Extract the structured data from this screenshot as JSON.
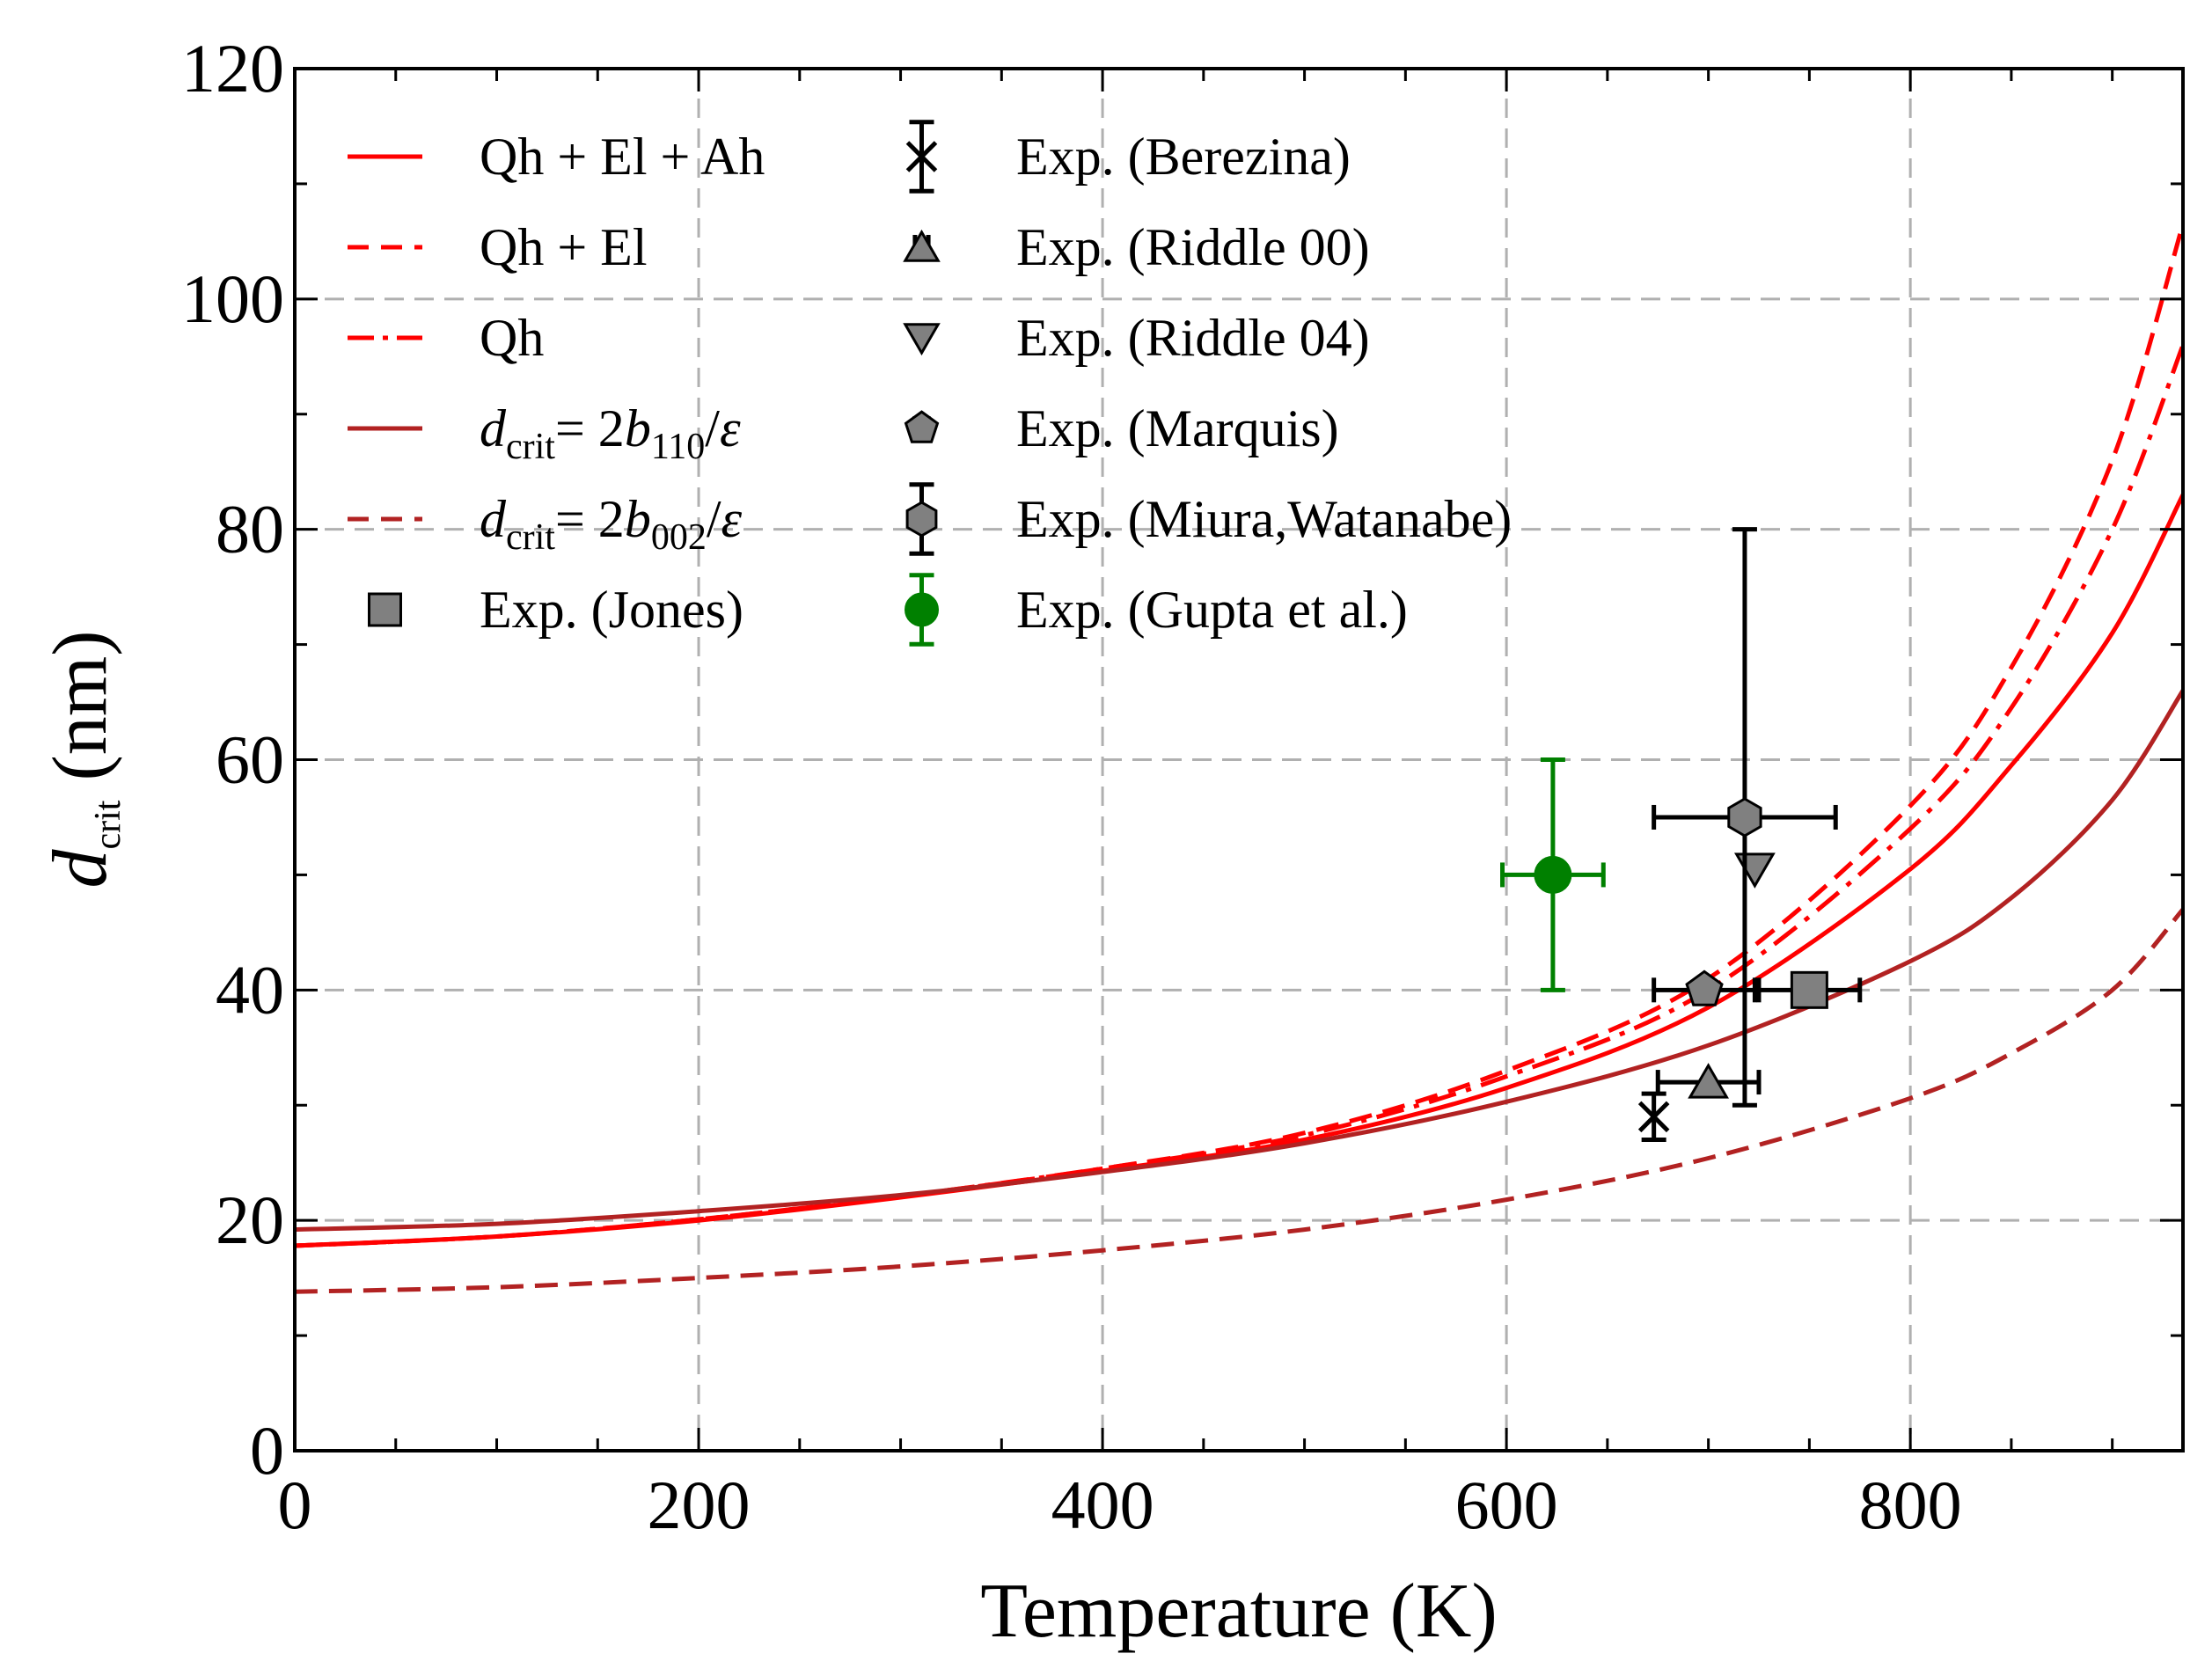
{
  "chart_data": {
    "type": "line",
    "xlabel": "Temperature (K)",
    "ylabel": {
      "main": "d",
      "sub": "crit",
      "unit": " (nm)"
    },
    "xlim": [
      0,
      935
    ],
    "ylim": [
      0,
      120
    ],
    "x_ticks": [
      0,
      200,
      400,
      600,
      800
    ],
    "y_ticks": [
      0,
      20,
      40,
      60,
      80,
      100,
      120
    ],
    "grid": true,
    "legend_position": "top-left",
    "series": [
      {
        "name": "Qh + El + Ah",
        "style": "solid",
        "color": "#ff0000",
        "x": [
          0,
          100,
          200,
          300,
          400,
          500,
          600,
          700,
          800,
          850,
          900,
          935
        ],
        "y": [
          17.8,
          18.6,
          20.0,
          22.0,
          24.3,
          27.0,
          31.5,
          38.5,
          50.5,
          59.5,
          71.0,
          83.0
        ]
      },
      {
        "name": "Qh + El",
        "style": "dashed",
        "color": "#ff0000",
        "x": [
          0,
          100,
          200,
          300,
          400,
          500,
          600,
          700,
          800,
          850,
          900,
          935
        ],
        "y": [
          17.8,
          18.6,
          20.1,
          22.1,
          24.5,
          27.6,
          33.0,
          41.0,
          56.0,
          68.0,
          86.0,
          106.5
        ]
      },
      {
        "name": "Qh",
        "style": "dashdot",
        "color": "#ff0000",
        "x": [
          0,
          100,
          200,
          300,
          400,
          500,
          600,
          700,
          800,
          850,
          900,
          935
        ],
        "y": [
          17.8,
          18.6,
          20.1,
          22.1,
          24.5,
          27.4,
          32.5,
          40.0,
          54.0,
          64.5,
          80.0,
          96.0
        ]
      },
      {
        "name": "d_crit = 2b110/ε",
        "label_parts": [
          "d",
          "crit",
          "= 2",
          "b",
          "110",
          "/",
          "ε"
        ],
        "style": "solid",
        "color": "#b22222",
        "x": [
          0,
          100,
          200,
          300,
          400,
          500,
          600,
          700,
          800,
          850,
          900,
          935
        ],
        "y": [
          19.2,
          19.7,
          20.8,
          22.2,
          24.2,
          26.7,
          30.3,
          35.2,
          42.5,
          48.0,
          56.5,
          66.0
        ]
      },
      {
        "name": "d_crit = 2b002/ε",
        "label_parts": [
          "d",
          "crit",
          "= 2",
          "b",
          "002",
          "/",
          "ε"
        ],
        "style": "dashed",
        "color": "#b22222",
        "x": [
          0,
          100,
          200,
          300,
          400,
          500,
          600,
          700,
          800,
          850,
          900,
          935
        ],
        "y": [
          13.8,
          14.2,
          15.0,
          16.0,
          17.4,
          19.2,
          21.8,
          25.4,
          30.6,
          34.5,
          40.0,
          47.0
        ]
      }
    ],
    "experiments": [
      {
        "name": "Exp. (Jones)",
        "marker": "square",
        "color": "#808080",
        "ecolor": "#000000",
        "x": 750,
        "y": 40,
        "xerr": 25,
        "yerr": 0
      },
      {
        "name": "Exp. (Berezina)",
        "marker": "x",
        "color": "#000000",
        "ecolor": "#000000",
        "x": 673,
        "y": 29,
        "xerr": 0,
        "yerr": 2
      },
      {
        "name": "Exp. (Riddle 00)",
        "marker": "triangle-up",
        "color": "#808080",
        "ecolor": "#000000",
        "x": 700,
        "y": 32,
        "xerr": 25,
        "yerr": 0
      },
      {
        "name": "Exp. (Riddle 04)",
        "marker": "triangle-down",
        "color": "#808080",
        "ecolor": "#000000",
        "x": 723,
        "y": 50.5,
        "xerr": 0,
        "yerr": 0
      },
      {
        "name": "Exp. (Marquis)",
        "marker": "pentagon",
        "color": "#808080",
        "ecolor": "#000000",
        "x": 698,
        "y": 40,
        "xerr": 25,
        "yerr": 0
      },
      {
        "name": "Exp. (Miura,Watanabe)",
        "marker": "hexagon",
        "color": "#808080",
        "ecolor": "#000000",
        "x": 718,
        "y": 55,
        "xerr": 45,
        "yerr": 25
      },
      {
        "name": "Exp. (Gupta et al.)",
        "marker": "circle",
        "color": "#008000",
        "ecolor": "#008000",
        "x": 623,
        "y": 50,
        "xerr": 25,
        "yerr": 10
      }
    ],
    "miura_asym_yerr": {
      "low": 25,
      "high": 25
    }
  }
}
